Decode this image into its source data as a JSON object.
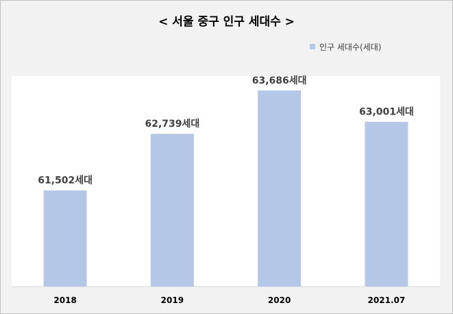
{
  "chart_data": {
    "type": "bar",
    "title": "< 서울 중구 인구 세대수 >",
    "categories": [
      "2018",
      "2019",
      "2020",
      "2021.07"
    ],
    "series": [
      {
        "name": "인구 세대수(세대)",
        "values": [
          61502,
          62739,
          63686,
          63001
        ],
        "labels": [
          "61,502세대",
          "62,739세대",
          "63,686세대",
          "63,001세대"
        ]
      }
    ],
    "ylim": [
      59400,
      64000
    ],
    "grid": false,
    "legend_position": "top-right",
    "bar_color": "#b4c7e7",
    "plot_background": "#ffffff",
    "chart_background": "#f2f2f2"
  }
}
